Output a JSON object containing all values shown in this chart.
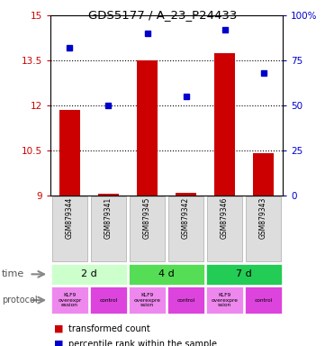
{
  "title": "GDS5177 / A_23_P24433",
  "samples": [
    "GSM879344",
    "GSM879341",
    "GSM879345",
    "GSM879342",
    "GSM879346",
    "GSM879343"
  ],
  "bar_values": [
    11.85,
    9.05,
    13.5,
    9.1,
    13.75,
    10.4
  ],
  "dot_values": [
    82,
    50,
    90,
    55,
    92,
    68
  ],
  "bar_color": "#cc0000",
  "dot_color": "#0000cc",
  "ylim_left": [
    9,
    15
  ],
  "ylim_right": [
    0,
    100
  ],
  "yticks_left": [
    9,
    10.5,
    12,
    13.5,
    15
  ],
  "ytick_labels_left": [
    "9",
    "10.5",
    "12",
    "13.5",
    "15"
  ],
  "yticks_right": [
    0,
    25,
    50,
    75,
    100
  ],
  "ytick_labels_right": [
    "0",
    "25",
    "50",
    "75",
    "100%"
  ],
  "hlines": [
    10.5,
    12,
    13.5
  ],
  "time_labels": [
    "2 d",
    "4 d",
    "7 d"
  ],
  "time_colors": [
    "#ccffcc",
    "#55dd55",
    "#22cc55"
  ],
  "protocol_labels": [
    "KLF9\noverexpr\nession",
    "control",
    "KLF9\noverexpre\nssion",
    "control",
    "KLF9\noverexpre\nssion",
    "control"
  ],
  "protocol_colors_odd": "#ee88ee",
  "protocol_colors_even": "#dd44dd",
  "legend_bar_label": "transformed count",
  "legend_dot_label": "percentile rank within the sample",
  "left_axis_color": "#cc0000",
  "right_axis_color": "#0000cc",
  "bar_bottom": 9
}
